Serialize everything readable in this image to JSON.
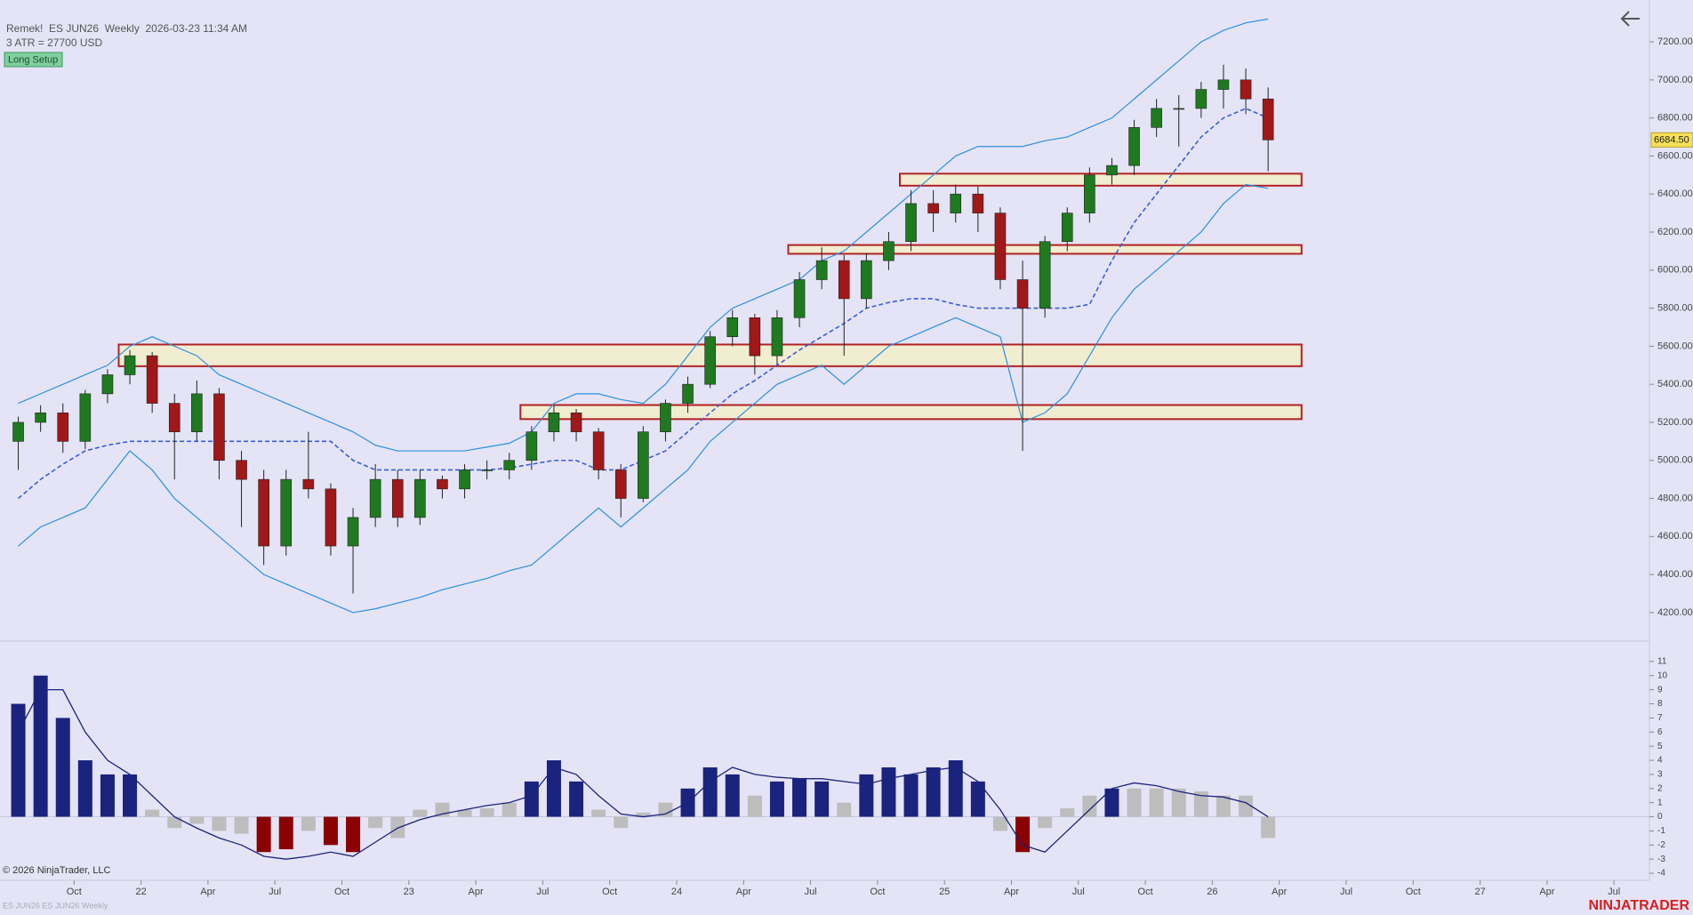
{
  "header": {
    "title": "Remek!  ES JUN26  Weekly  2026-03-23 11:34 AM",
    "subtitle": "3 ATR = 27700 USD",
    "badge": "Long Setup"
  },
  "footer": {
    "copyright": "© 2026 NinjaTrader, LLC",
    "instrument": "ES JUN26 ES JUN26 Weekly",
    "brand": "NINJATRADER"
  },
  "chart_data": [
    {
      "type": "candlestick",
      "open": [
        5100,
        5200,
        5250,
        5100,
        5350,
        5450,
        5550,
        5300,
        5150,
        5350,
        5000,
        4900,
        4550,
        4900,
        4850,
        4550,
        4700,
        4900,
        4700,
        4900,
        4850,
        4950,
        4950,
        5000,
        5150,
        5250,
        5150,
        4950,
        4800,
        5150,
        5300,
        5400,
        5650,
        5750,
        5550,
        5750,
        5950,
        6050,
        5850,
        6050,
        6150,
        6350,
        6300,
        6400,
        6300,
        5950,
        5800,
        6150,
        6300,
        6500,
        6550,
        6750,
        6850,
        6850,
        6950,
        7000,
        6900
      ],
      "high": [
        5230,
        5290,
        5300,
        5370,
        5480,
        5580,
        5570,
        5350,
        5420,
        5380,
        5050,
        4950,
        4950,
        5150,
        4880,
        4750,
        4980,
        4950,
        4950,
        4920,
        4980,
        5000,
        5040,
        5180,
        5290,
        5270,
        5170,
        4980,
        5180,
        5320,
        5440,
        5680,
        5790,
        5770,
        5790,
        5990,
        6120,
        6080,
        6090,
        6200,
        6420,
        6420,
        6450,
        6440,
        6330,
        6050,
        6180,
        6330,
        6540,
        6590,
        6790,
        6900,
        6920,
        6990,
        7080,
        7060,
        6960
      ],
      "low": [
        4950,
        5150,
        5040,
        5060,
        5300,
        5400,
        5250,
        4900,
        5100,
        4900,
        4650,
        4450,
        4500,
        4800,
        4500,
        4300,
        4650,
        4650,
        4660,
        4800,
        4800,
        4900,
        4900,
        4950,
        5100,
        5100,
        4900,
        4700,
        4780,
        5100,
        5250,
        5380,
        5600,
        5450,
        5500,
        5700,
        5900,
        5550,
        5800,
        6000,
        6100,
        6200,
        6250,
        6200,
        5900,
        5050,
        5750,
        6100,
        6250,
        6450,
        6500,
        6700,
        6650,
        6800,
        6850,
        6820,
        6520
      ],
      "close": [
        5200,
        5250,
        5100,
        5350,
        5450,
        5550,
        5300,
        5150,
        5350,
        5000,
        4900,
        4550,
        4900,
        4850,
        4550,
        4700,
        4900,
        4700,
        4900,
        4850,
        4950,
        4950,
        5000,
        5150,
        5250,
        5150,
        4950,
        4800,
        5150,
        5300,
        5400,
        5650,
        5750,
        5550,
        5750,
        5950,
        6050,
        5850,
        6050,
        6150,
        6350,
        6300,
        6400,
        6300,
        5950,
        5800,
        6150,
        6300,
        6500,
        6550,
        6750,
        6850,
        6850,
        6950,
        7000,
        6900,
        6684.5
      ],
      "up_color": "#1f7a1f",
      "down_color": "#a01818",
      "series": [
        {
          "color": "#2b8fe0",
          "dash": false,
          "values": [
            5300,
            5350,
            5400,
            5450,
            5500,
            5600,
            5650,
            5600,
            5550,
            5450,
            5400,
            5350,
            5300,
            5250,
            5200,
            5150,
            5080,
            5050,
            5050,
            5050,
            5050,
            5070,
            5090,
            5150,
            5300,
            5350,
            5350,
            5320,
            5300,
            5400,
            5550,
            5700,
            5800,
            5850,
            5900,
            5950,
            6050,
            6100,
            6200,
            6300,
            6400,
            6500,
            6600,
            6650,
            6650,
            6650,
            6680,
            6700,
            6750,
            6800,
            6900,
            7000,
            7100,
            7200,
            7260,
            7300,
            7320
          ]
        },
        {
          "color": "#2b8fe0",
          "dash": false,
          "values": [
            4550,
            4650,
            4700,
            4750,
            4900,
            5050,
            4950,
            4800,
            4700,
            4600,
            4500,
            4400,
            4350,
            4300,
            4250,
            4200,
            4220,
            4250,
            4280,
            4320,
            4350,
            4380,
            4420,
            4450,
            4550,
            4650,
            4750,
            4650,
            4750,
            4850,
            4950,
            5100,
            5200,
            5300,
            5400,
            5450,
            5500,
            5400,
            5500,
            5600,
            5650,
            5700,
            5750,
            5700,
            5650,
            5200,
            5250,
            5350,
            5550,
            5750,
            5900,
            6000,
            6100,
            6200,
            6350,
            6450,
            6430
          ]
        },
        {
          "color": "#3b5bdb",
          "dash": true,
          "values": [
            4800,
            4900,
            4980,
            5050,
            5080,
            5100,
            5100,
            5100,
            5100,
            5100,
            5100,
            5100,
            5100,
            5100,
            5100,
            5000,
            4950,
            4950,
            4950,
            4950,
            4950,
            4950,
            4960,
            4980,
            5000,
            5000,
            4950,
            4950,
            5000,
            5050,
            5150,
            5250,
            5350,
            5420,
            5500,
            5580,
            5650,
            5720,
            5800,
            5830,
            5850,
            5850,
            5820,
            5800,
            5800,
            5800,
            5800,
            5800,
            5820,
            6050,
            6250,
            6400,
            6550,
            6700,
            6800,
            6850,
            6800
          ]
        }
      ],
      "zones": [
        {
          "low": 6444,
          "high": 6507,
          "from": 40,
          "to": 58
        },
        {
          "low": 6086,
          "high": 6132,
          "from": 35,
          "to": 58
        },
        {
          "low": 5495,
          "high": 5609,
          "from": 5,
          "to": 58
        },
        {
          "low": 5217,
          "high": 5291,
          "from": 23,
          "to": 58
        }
      ],
      "zone_fill": "#f4f0c4",
      "zone_stroke": "#b22222",
      "last_price": {
        "value": 6684.5,
        "label": "6684.50"
      },
      "ylim": [
        4050,
        7420
      ],
      "yticks": [
        {
          "value": 4200,
          "label": "4200.00"
        },
        {
          "value": 4400,
          "label": "4400.00"
        },
        {
          "value": 4600,
          "label": "4600.00"
        },
        {
          "value": 4800,
          "label": "4800.00"
        },
        {
          "value": 5000,
          "label": "5000.00"
        },
        {
          "value": 5200,
          "label": "5200.00"
        },
        {
          "value": 5400,
          "label": "5400.00"
        },
        {
          "value": 5600,
          "label": "5600.00"
        },
        {
          "value": 5800,
          "label": "5800.00"
        },
        {
          "value": 6000,
          "label": "6000.00"
        },
        {
          "value": 6200,
          "label": "6200.00"
        },
        {
          "value": 6400,
          "label": "6400.00"
        },
        {
          "value": 6600,
          "label": "6600.00"
        },
        {
          "value": 6800,
          "label": "6800.00"
        },
        {
          "value": 7000,
          "label": "7000.00"
        },
        {
          "value": 7200,
          "label": "7200.00"
        }
      ],
      "xticks": [
        {
          "value": 3,
          "label": "Oct"
        },
        {
          "value": 6,
          "label": "22"
        },
        {
          "value": 9,
          "label": "Apr"
        },
        {
          "value": 12,
          "label": "Jul"
        },
        {
          "value": 15,
          "label": "Oct"
        },
        {
          "value": 18,
          "label": "23"
        },
        {
          "value": 21,
          "label": "Apr"
        },
        {
          "value": 24,
          "label": "Jul"
        },
        {
          "value": 27,
          "label": "Oct"
        },
        {
          "value": 30,
          "label": "24"
        },
        {
          "value": 33,
          "label": "Apr"
        },
        {
          "value": 36,
          "label": "Jul"
        },
        {
          "value": 39,
          "label": "Oct"
        },
        {
          "value": 42,
          "label": "25"
        },
        {
          "value": 45,
          "label": "Apr"
        },
        {
          "value": 48,
          "label": "Jul"
        },
        {
          "value": 51,
          "label": "Oct"
        },
        {
          "value": 54,
          "label": "26"
        },
        {
          "value": 57,
          "label": "Apr"
        },
        {
          "value": 60,
          "label": "Jul"
        },
        {
          "value": 63,
          "label": "Oct"
        },
        {
          "value": 66,
          "label": "27"
        },
        {
          "value": 69,
          "label": "Apr"
        },
        {
          "value": 72,
          "label": "Jul"
        }
      ]
    },
    {
      "type": "bar",
      "values": [
        8,
        10,
        7,
        4,
        3,
        3,
        0.5,
        -0.8,
        -0.5,
        -1,
        -1.2,
        -2.5,
        -2.3,
        -1,
        -2,
        -2.5,
        -0.8,
        -1.5,
        0.5,
        1,
        0.5,
        0.6,
        1,
        2.5,
        4,
        2.5,
        0.5,
        -0.8,
        0.3,
        1,
        2,
        3.5,
        3,
        1.5,
        2.5,
        2.7,
        2.5,
        1,
        3,
        3.5,
        3,
        3.5,
        4,
        2.5,
        -1,
        -2.5,
        -0.8,
        0.6,
        1.5,
        2,
        2,
        2,
        2,
        1.8,
        1.5,
        1.5,
        -1.5
      ],
      "colors": [
        "#1a237e",
        "#1a237e",
        "#1a237e",
        "#1a237e",
        "#1a237e",
        "#1a237e",
        "#bdbdbd",
        "#bdbdbd",
        "#bdbdbd",
        "#bdbdbd",
        "#bdbdbd",
        "#8b0000",
        "#8b0000",
        "#bdbdbd",
        "#8b0000",
        "#8b0000",
        "#bdbdbd",
        "#bdbdbd",
        "#bdbdbd",
        "#bdbdbd",
        "#bdbdbd",
        "#bdbdbd",
        "#bdbdbd",
        "#1a237e",
        "#1a237e",
        "#1a237e",
        "#bdbdbd",
        "#bdbdbd",
        "#bdbdbd",
        "#bdbdbd",
        "#1a237e",
        "#1a237e",
        "#1a237e",
        "#bdbdbd",
        "#1a237e",
        "#1a237e",
        "#1a237e",
        "#bdbdbd",
        "#1a237e",
        "#1a237e",
        "#1a237e",
        "#1a237e",
        "#1a237e",
        "#1a237e",
        "#bdbdbd",
        "#8b0000",
        "#bdbdbd",
        "#bdbdbd",
        "#bdbdbd",
        "#1a237e",
        "#bdbdbd",
        "#bdbdbd",
        "#bdbdbd",
        "#bdbdbd",
        "#bdbdbd",
        "#bdbdbd",
        "#bdbdbd"
      ],
      "line": {
        "color": "#1a237e",
        "values": [
          6,
          9,
          9,
          6,
          4,
          3,
          1.5,
          0,
          -0.8,
          -1.5,
          -2,
          -2.8,
          -3,
          -2.8,
          -2.5,
          -2.8,
          -1.8,
          -0.8,
          -0.2,
          0.2,
          0.5,
          0.8,
          1,
          1.5,
          3.5,
          3,
          1.5,
          0.2,
          0,
          0.2,
          1,
          2.5,
          3.5,
          3,
          2.8,
          2.7,
          2.7,
          2.5,
          2.3,
          2.7,
          3,
          3.3,
          3.5,
          2.5,
          0.5,
          -2,
          -2.5,
          -1,
          0.5,
          2,
          2.4,
          2.2,
          1.8,
          1.5,
          1.4,
          1,
          0
        ]
      },
      "ylim": [
        -4.5,
        12
      ],
      "yticks": [
        -4,
        -3,
        -2,
        -1,
        0,
        1,
        2,
        3,
        4,
        5,
        6,
        7,
        8,
        9,
        10,
        11
      ]
    }
  ]
}
